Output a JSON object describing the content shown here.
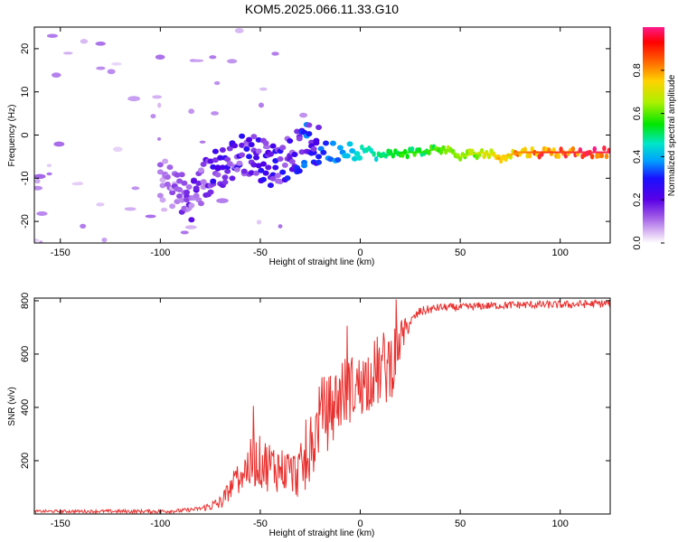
{
  "title": "KOM5.2025.066.11.33.G10",
  "colors": {
    "axes": "#000000",
    "snr_line": "#e8302e",
    "background": "#ffffff"
  },
  "chart_data": [
    {
      "type": "heatmap",
      "xlabel": "Height of straight line (km)",
      "ylabel": "Frequency (Hz)",
      "xlim": [
        -163,
        125
      ],
      "ylim": [
        -25,
        25
      ],
      "x_ticks": [
        -150,
        -100,
        -50,
        0,
        50,
        100
      ],
      "y_ticks": [
        -20,
        -10,
        0,
        10,
        20
      ],
      "colorbar": {
        "label": "Normalized spectral amplitude",
        "range": [
          0,
          1
        ],
        "ticks": [
          0.0,
          0.2,
          0.4,
          0.6,
          0.8
        ],
        "colormap": "rainbow"
      },
      "ridge": {
        "description_free": true,
        "x": [
          -163,
          -120,
          -100,
          -85,
          -75,
          -65,
          -55,
          -45,
          -35,
          -25,
          -15,
          -5,
          0,
          10,
          20,
          30,
          40,
          50,
          60,
          70,
          80,
          90,
          100,
          110,
          125
        ],
        "freq": [
          5,
          2,
          -10,
          -15,
          -9,
          -6,
          -4,
          -7,
          -5,
          -2,
          -4,
          -3,
          -3,
          -5,
          -4,
          -4,
          -3,
          -5,
          -4,
          -5,
          -4,
          -4,
          -4,
          -4,
          -4
        ],
        "amplitude": [
          0.02,
          0.05,
          0.12,
          0.2,
          0.25,
          0.25,
          0.28,
          0.28,
          0.3,
          0.35,
          0.4,
          0.45,
          0.5,
          0.55,
          0.6,
          0.62,
          0.65,
          0.7,
          0.75,
          0.8,
          0.85,
          0.9,
          0.92,
          0.95,
          0.96
        ]
      }
    },
    {
      "type": "line",
      "xlabel": "Height of straight line (km)",
      "ylabel": "SNR (v/v)",
      "xlim": [
        -163,
        125
      ],
      "ylim": [
        0,
        810
      ],
      "x_ticks": [
        -150,
        -100,
        -50,
        0,
        50,
        100
      ],
      "y_ticks": [
        200,
        400,
        600,
        800
      ],
      "envelope": {
        "x": [
          -163,
          -100,
          -90,
          -80,
          -70,
          -60,
          -52,
          -45,
          -40,
          -32,
          -25,
          -20,
          -15,
          -10,
          -5,
          0,
          5,
          10,
          15,
          20,
          25,
          30,
          40,
          50,
          60,
          80,
          100,
          125
        ],
        "y": [
          10,
          10,
          12,
          20,
          40,
          150,
          200,
          180,
          170,
          150,
          200,
          380,
          380,
          450,
          470,
          480,
          520,
          540,
          560,
          650,
          720,
          760,
          775,
          775,
          780,
          785,
          785,
          790
        ]
      },
      "noise_amp": {
        "x": [
          -163,
          -80,
          -65,
          -55,
          -45,
          -35,
          -25,
          -15,
          0,
          15,
          25,
          40,
          125
        ],
        "y": [
          5,
          8,
          40,
          100,
          100,
          80,
          120,
          150,
          120,
          150,
          20,
          15,
          15
        ]
      }
    }
  ]
}
